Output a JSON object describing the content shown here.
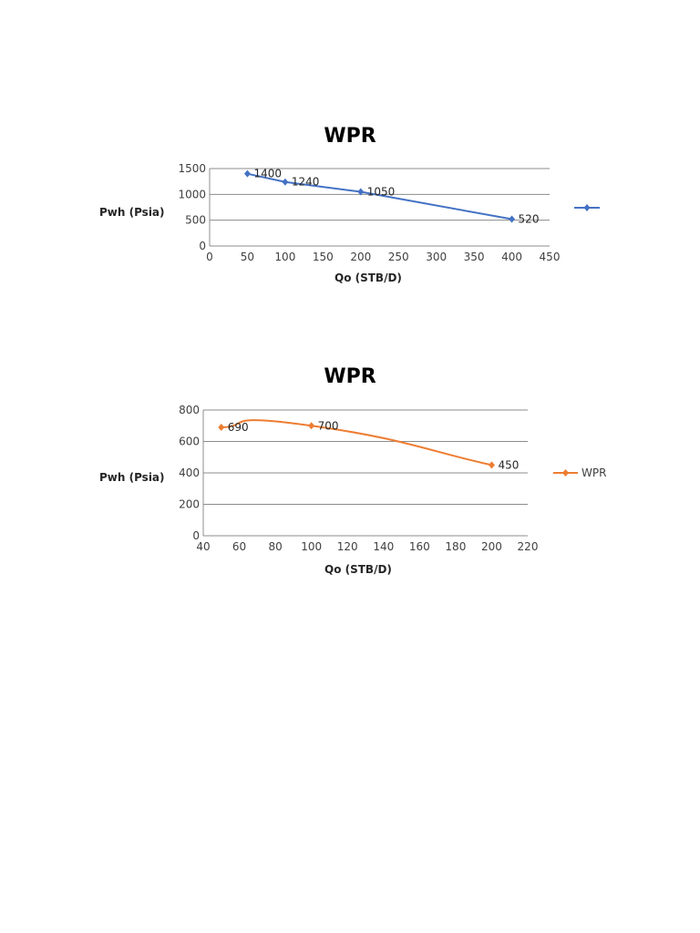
{
  "chart_data": [
    {
      "type": "line",
      "title": "WPR",
      "xlabel": "Qo (STB/D)",
      "ylabel": "Pwh (Psia)",
      "x": [
        50,
        100,
        200,
        400
      ],
      "series": [
        {
          "name": "",
          "values": [
            1400,
            1240,
            1050,
            520
          ],
          "color": "#4472C4",
          "smooth": false
        }
      ],
      "data_labels": [
        "1400",
        "1240",
        "1050",
        "520"
      ],
      "xlim": [
        0,
        450
      ],
      "ylim": [
        0,
        1500
      ],
      "xticks": [
        0,
        50,
        100,
        150,
        200,
        250,
        300,
        350,
        400,
        450
      ],
      "yticks": [
        0,
        500,
        1000,
        1500
      ],
      "grid": "horizontal",
      "legend_position": "right"
    },
    {
      "type": "line",
      "title": "WPR",
      "xlabel": "Qo (STB/D)",
      "ylabel": "Pwh (Psia)",
      "x": [
        50,
        100,
        200
      ],
      "series": [
        {
          "name": "WPR",
          "values": [
            690,
            700,
            450
          ],
          "color": "#ED7D31",
          "smooth": true
        }
      ],
      "data_labels": [
        "690",
        "700",
        "450"
      ],
      "xlim": [
        40,
        220
      ],
      "ylim": [
        0,
        800
      ],
      "xticks": [
        40,
        60,
        80,
        100,
        120,
        140,
        160,
        180,
        200,
        220
      ],
      "yticks": [
        0,
        200,
        400,
        600,
        800
      ],
      "grid": "horizontal",
      "legend_position": "right"
    }
  ],
  "charts": [
    {
      "title": "WPR",
      "xlabel": "Qo (STB/D)",
      "ylabel": "Pwh (Psia)",
      "legend_label": ""
    },
    {
      "title": "WPR",
      "xlabel": "Qo (STB/D)",
      "ylabel": "Pwh (Psia)",
      "legend_label": "WPR"
    }
  ]
}
